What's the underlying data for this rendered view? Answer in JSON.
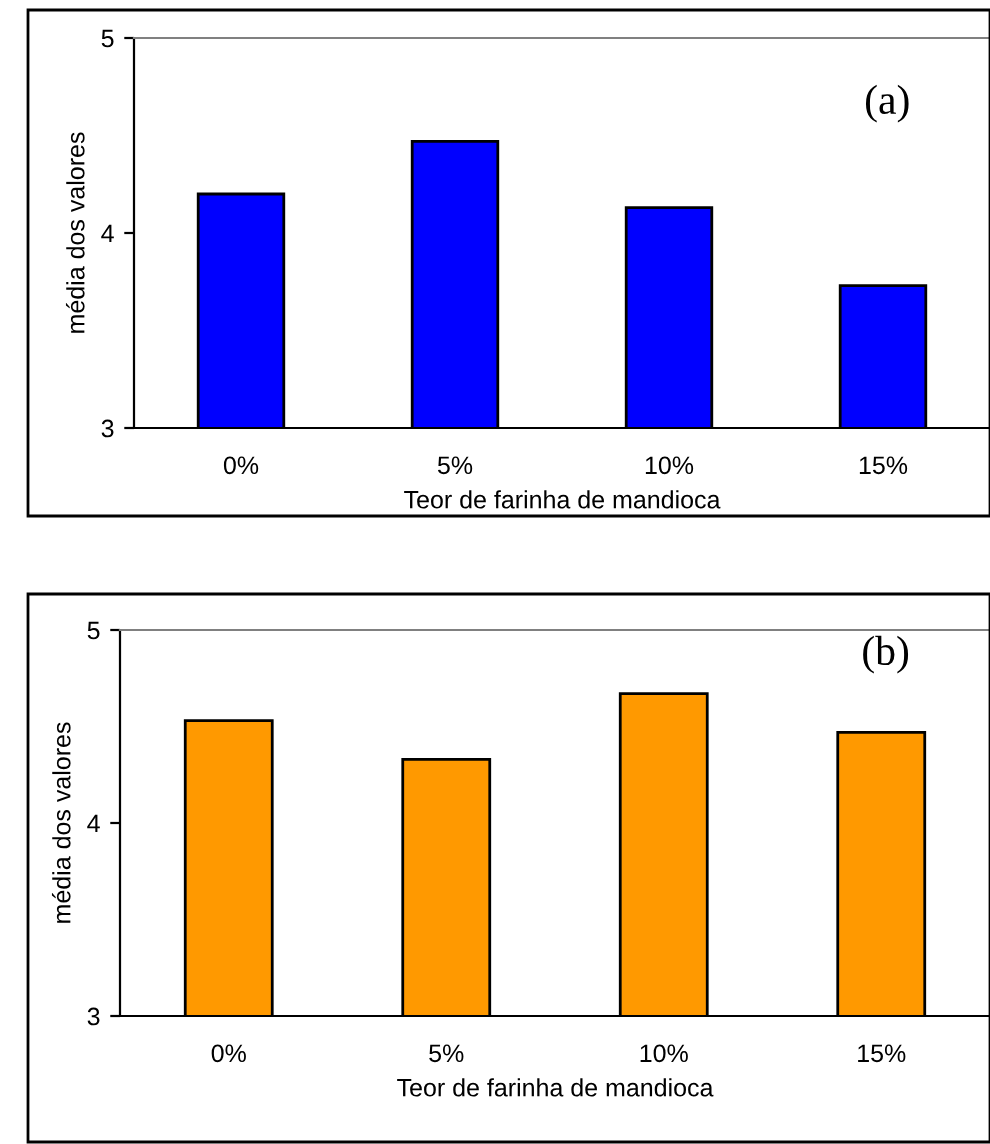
{
  "chart_data": [
    {
      "type": "bar",
      "categories": [
        "0%",
        "5%",
        "10%",
        "15%"
      ],
      "values": [
        4.2,
        4.47,
        4.13,
        3.73
      ],
      "color": "#0000ff",
      "xlabel": "Teor de farinha de mandioca",
      "ylabel": "média dos valores",
      "ylim": [
        3,
        5
      ],
      "yticks": [
        3,
        4,
        5
      ],
      "annotations": [
        "(a)"
      ]
    },
    {
      "type": "bar",
      "categories": [
        "0%",
        "5%",
        "10%",
        "15%"
      ],
      "values": [
        4.53,
        4.33,
        4.67,
        4.47
      ],
      "color": "#ff9900",
      "xlabel": "Teor de farinha de mandioca",
      "ylabel": "média dos valores",
      "ylim": [
        3,
        5
      ],
      "yticks": [
        3,
        4,
        5
      ],
      "annotations": [
        "(b)"
      ]
    }
  ]
}
